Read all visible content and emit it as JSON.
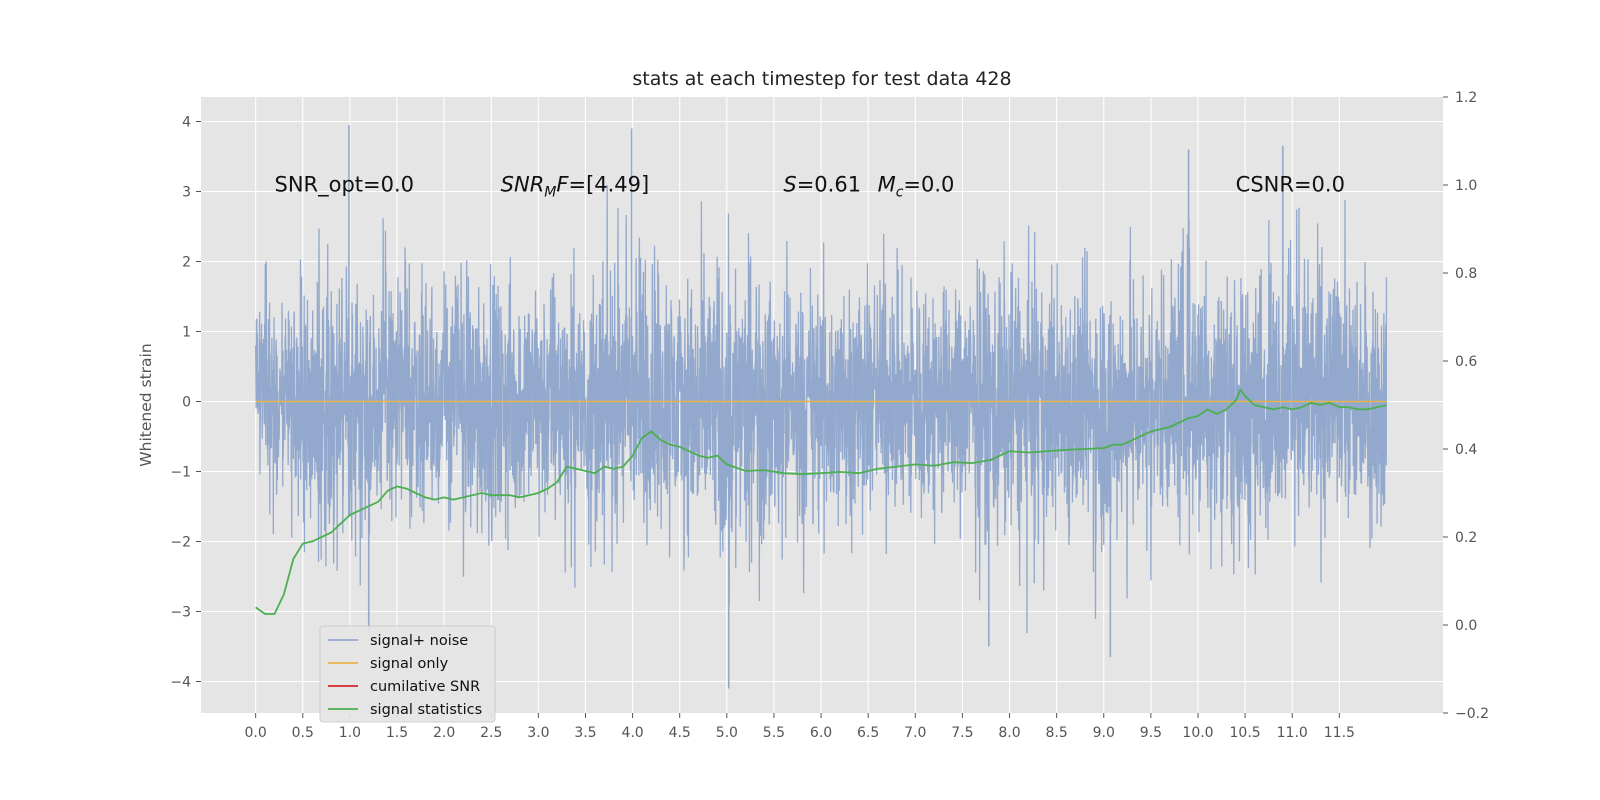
{
  "chart_data": {
    "type": "line",
    "title": "stats at each timestep for test data 428",
    "ylabel": "Whitened strain",
    "xlabel": "",
    "xlim": [
      -0.58,
      12.6
    ],
    "ylim": [
      -4.45,
      4.35
    ],
    "y2lim": [
      -0.2,
      1.2
    ],
    "grid": true,
    "legend_placement": "lower-left",
    "x_ticks": [
      0.0,
      0.5,
      1.0,
      1.5,
      2.0,
      2.5,
      3.0,
      3.5,
      4.0,
      4.5,
      5.0,
      5.5,
      6.0,
      6.5,
      7.0,
      7.5,
      8.0,
      8.5,
      9.0,
      9.5,
      10.0,
      10.5,
      11.0,
      11.5
    ],
    "x_tick_labels": [
      "0.0",
      "0.5",
      "1.0",
      "1.5",
      "2.0",
      "2.5",
      "3.0",
      "3.5",
      "4.0",
      "4.5",
      "5.0",
      "5.5",
      "6.0",
      "6.5",
      "7.0",
      "7.5",
      "8.0",
      "8.5",
      "9.0",
      "9.5",
      "10.0",
      "10.5",
      "11.0",
      "11.5"
    ],
    "y_ticks": [
      -4,
      -3,
      -2,
      -1,
      0,
      1,
      2,
      3,
      4
    ],
    "y_tick_labels": [
      "−4",
      "−3",
      "−2",
      "−1",
      "0",
      "1",
      "2",
      "3",
      "4"
    ],
    "y2_ticks": [
      -0.2,
      0.0,
      0.2,
      0.4,
      0.6,
      0.8,
      1.0,
      1.2
    ],
    "y2_tick_labels": [
      "−0.2",
      "0.0",
      "0.2",
      "0.4",
      "0.6",
      "0.8",
      "1.0",
      "1.2"
    ],
    "annotations": [
      {
        "text": "SNR_opt=0.0",
        "x": 0.2,
        "y": 3.1
      },
      {
        "text": "SNR",
        "sub": "M",
        "suffix": "F=[4.49]",
        "italic": true,
        "x": 2.6,
        "y": 3.1
      },
      {
        "text": "S=0.61",
        "x": 5.6,
        "y": 3.1
      },
      {
        "text": "M",
        "sub": "c",
        "suffix": "=0.0",
        "italic": true,
        "x": 6.6,
        "y": 3.1
      },
      {
        "text": "CSNR=0.0",
        "x": 10.4,
        "y": 3.1
      }
    ],
    "series": [
      {
        "name": "signal+ noise",
        "color": "#92a8cc",
        "axis": "left",
        "x_range": [
          0.0,
          12.0
        ],
        "upper_envelope_x": [
          0.0,
          0.5,
          1.0,
          1.5,
          2.0,
          2.5,
          3.0,
          3.5,
          4.0,
          4.5,
          5.0,
          5.5,
          6.0,
          6.5,
          7.0,
          7.5,
          8.0,
          8.5,
          9.0,
          9.5,
          10.0,
          10.5,
          11.0,
          11.5,
          12.0
        ],
        "upper_envelope_y": [
          2.3,
          2.6,
          2.9,
          3.0,
          2.9,
          2.8,
          2.7,
          2.6,
          3.9,
          2.7,
          3.1,
          2.8,
          2.6,
          3.1,
          2.8,
          2.8,
          2.9,
          2.7,
          2.8,
          2.6,
          3.6,
          2.9,
          3.6,
          3.1,
          2.4
        ],
        "lower_envelope_y": [
          -1.5,
          -2.7,
          -3.2,
          -2.4,
          -2.5,
          -3.1,
          -2.6,
          -2.9,
          -3.0,
          -3.0,
          -4.1,
          -2.9,
          -3.1,
          -2.6,
          -2.8,
          -2.9,
          -3.5,
          -3.0,
          -3.6,
          -2.7,
          -2.8,
          -3.2,
          -2.5,
          -2.8,
          -2.5
        ],
        "spikes": [
          {
            "x": 0.99,
            "y": 3.95
          },
          {
            "x": 3.99,
            "y": 3.9
          },
          {
            "x": 10.9,
            "y": 3.65
          },
          {
            "x": 9.9,
            "y": 3.6
          },
          {
            "x": 1.2,
            "y": -3.3
          },
          {
            "x": 5.02,
            "y": -4.1
          },
          {
            "x": 7.78,
            "y": -3.5
          },
          {
            "x": 9.07,
            "y": -3.65
          },
          {
            "x": 6.0,
            "y": 0.45
          }
        ]
      },
      {
        "name": "signal only",
        "color": "#e8b44c",
        "axis": "left",
        "x": [
          0.0,
          12.0
        ],
        "y": [
          0.0,
          0.0
        ]
      },
      {
        "name": "cumilative SNR",
        "color": "#d62728",
        "axis": "left",
        "x": [],
        "y": []
      },
      {
        "name": "signal statistics",
        "color": "#4caf50",
        "axis": "right",
        "x": [
          0.0,
          0.1,
          0.2,
          0.3,
          0.4,
          0.5,
          0.6,
          0.7,
          0.8,
          0.9,
          1.0,
          1.1,
          1.2,
          1.3,
          1.4,
          1.5,
          1.6,
          1.7,
          1.8,
          1.9,
          2.0,
          2.1,
          2.2,
          2.3,
          2.4,
          2.5,
          2.6,
          2.7,
          2.8,
          2.9,
          3.0,
          3.1,
          3.2,
          3.3,
          3.4,
          3.5,
          3.6,
          3.7,
          3.8,
          3.9,
          4.0,
          4.1,
          4.2,
          4.3,
          4.4,
          4.5,
          4.6,
          4.7,
          4.8,
          4.9,
          5.0,
          5.2,
          5.4,
          5.6,
          5.8,
          6.0,
          6.2,
          6.4,
          6.6,
          6.8,
          7.0,
          7.2,
          7.4,
          7.6,
          7.8,
          8.0,
          8.2,
          8.4,
          8.6,
          8.8,
          9.0,
          9.1,
          9.2,
          9.3,
          9.4,
          9.5,
          9.6,
          9.7,
          9.8,
          9.9,
          10.0,
          10.1,
          10.2,
          10.3,
          10.4,
          10.45,
          10.5,
          10.6,
          10.7,
          10.8,
          10.9,
          11.0,
          11.1,
          11.2,
          11.3,
          11.4,
          11.5,
          11.6,
          11.7,
          11.8,
          11.9,
          12.0
        ],
        "y": [
          0.04,
          0.025,
          0.025,
          0.07,
          0.15,
          0.185,
          0.19,
          0.2,
          0.21,
          0.23,
          0.25,
          0.26,
          0.27,
          0.28,
          0.305,
          0.315,
          0.31,
          0.3,
          0.29,
          0.285,
          0.29,
          0.285,
          0.29,
          0.295,
          0.3,
          0.295,
          0.295,
          0.295,
          0.29,
          0.295,
          0.3,
          0.31,
          0.325,
          0.36,
          0.355,
          0.35,
          0.345,
          0.36,
          0.355,
          0.36,
          0.385,
          0.425,
          0.44,
          0.42,
          0.41,
          0.405,
          0.395,
          0.385,
          0.38,
          0.385,
          0.365,
          0.35,
          0.352,
          0.345,
          0.343,
          0.345,
          0.348,
          0.345,
          0.355,
          0.36,
          0.365,
          0.362,
          0.37,
          0.368,
          0.375,
          0.395,
          0.392,
          0.395,
          0.398,
          0.4,
          0.402,
          0.41,
          0.41,
          0.42,
          0.43,
          0.44,
          0.445,
          0.45,
          0.46,
          0.47,
          0.475,
          0.49,
          0.48,
          0.49,
          0.51,
          0.535,
          0.52,
          0.5,
          0.495,
          0.49,
          0.495,
          0.49,
          0.495,
          0.505,
          0.5,
          0.505,
          0.495,
          0.495,
          0.49,
          0.49,
          0.495,
          0.5
        ]
      }
    ]
  }
}
